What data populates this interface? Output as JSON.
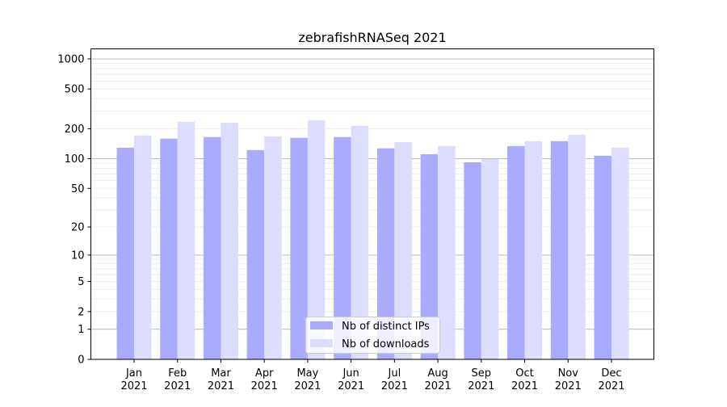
{
  "chart_data": {
    "type": "bar",
    "title": "zebrafishRNASeq 2021",
    "xlabel": "",
    "ylabel": "",
    "yscale": "log10(1+y)",
    "ylim": [
      0,
      1300
    ],
    "yticks": [
      0,
      1,
      2,
      5,
      10,
      20,
      50,
      100,
      200,
      500,
      1000
    ],
    "grid": true,
    "legend_position": "lower center",
    "categories": [
      "Jan\n2021",
      "Feb\n2021",
      "Mar\n2021",
      "Apr\n2021",
      "May\n2021",
      "Jun\n2021",
      "Jul\n2021",
      "Aug\n2021",
      "Sep\n2021",
      "Oct\n2021",
      "Nov\n2021",
      "Dec\n2021"
    ],
    "series": [
      {
        "name": "Nb of distinct IPs",
        "color": "#aaaaff",
        "values": [
          129,
          159,
          165,
          122,
          162,
          165,
          127,
          111,
          92,
          134,
          150,
          107
        ]
      },
      {
        "name": "Nb of downloads",
        "color": "#ddddff",
        "values": [
          171,
          235,
          230,
          168,
          244,
          214,
          147,
          134,
          99,
          150,
          174,
          129
        ]
      }
    ]
  }
}
